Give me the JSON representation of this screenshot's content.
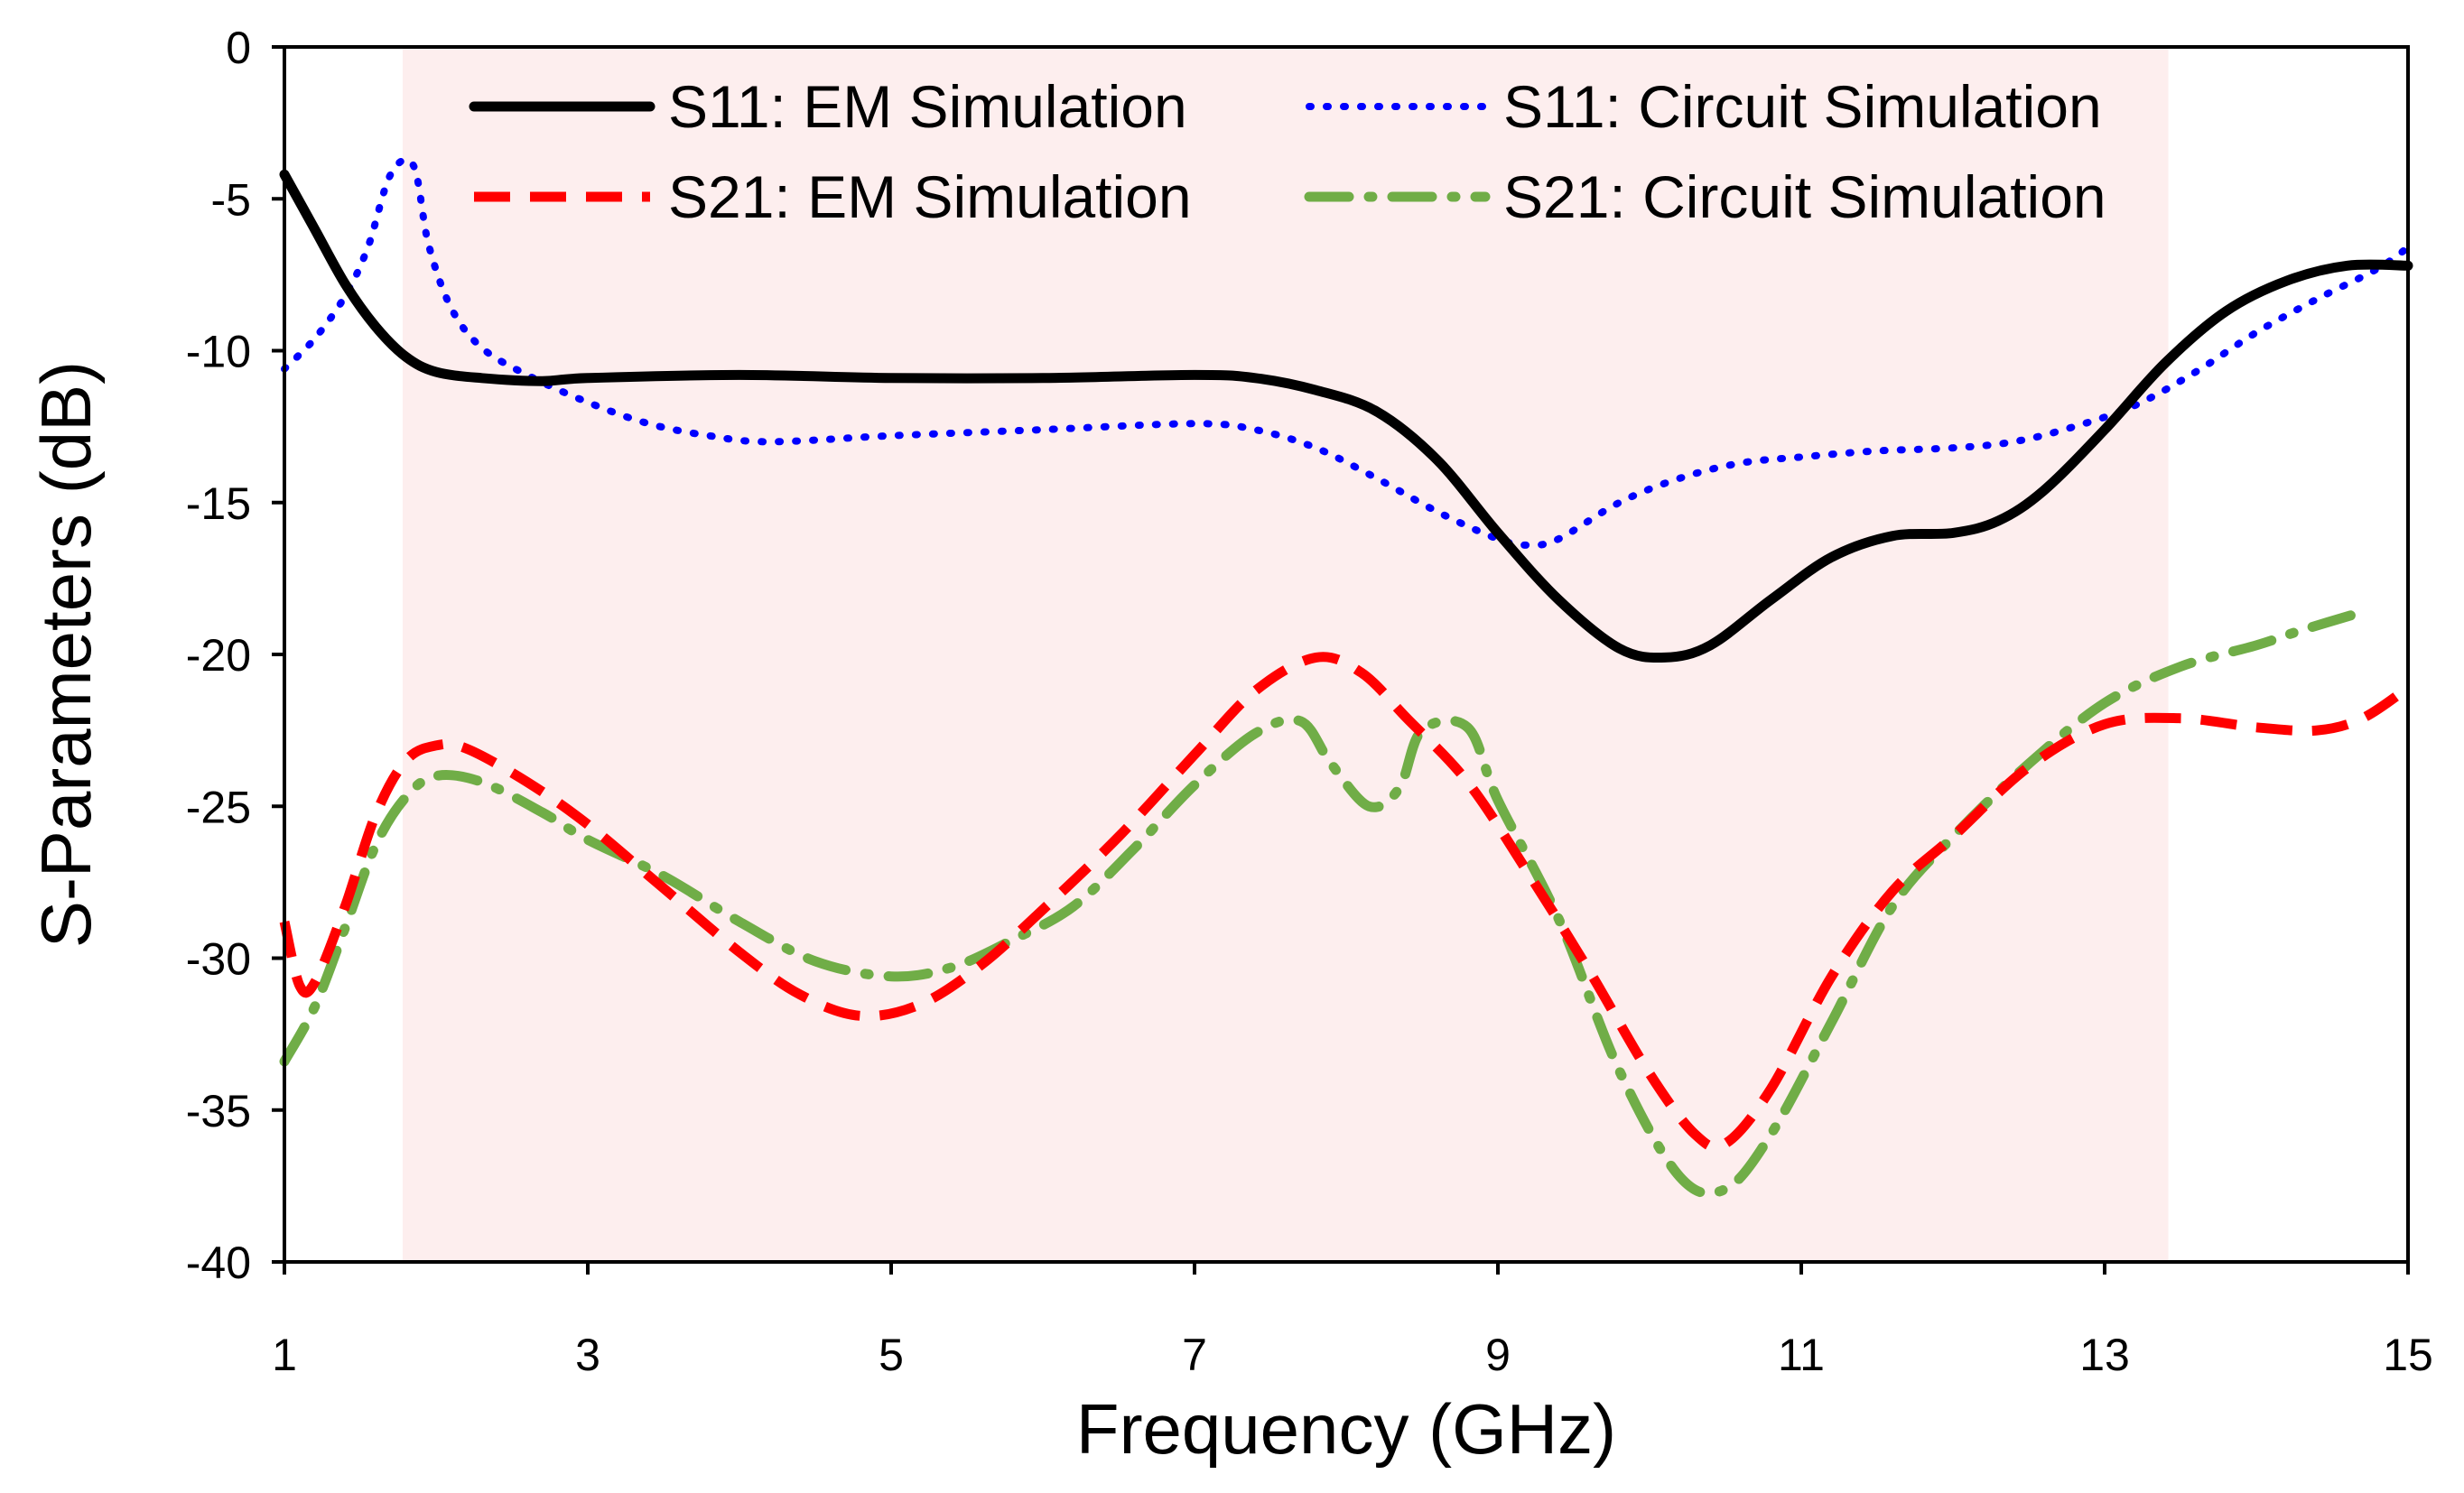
{
  "chart_data": {
    "type": "line",
    "title": "",
    "xlabel": "Frequency (GHz)",
    "ylabel": "S-Parameters (dB)",
    "xlim": [
      1,
      15
    ],
    "ylim": [
      -40,
      0
    ],
    "xticks": [
      1,
      3,
      5,
      7,
      9,
      11,
      13,
      15
    ],
    "yticks": [
      0,
      -5,
      -10,
      -15,
      -20,
      -25,
      -30,
      -35,
      -40
    ],
    "shaded_band": {
      "x_start": 1.78,
      "x_end": 13.42,
      "color": "#fdeeee"
    },
    "legend_position": "top",
    "series": [
      {
        "name": "S11: EM Simulation",
        "color": "#000000",
        "style": "solid",
        "points": [
          [
            1.0,
            -4.2
          ],
          [
            1.2,
            -6.0
          ],
          [
            1.4,
            -7.8
          ],
          [
            1.6,
            -9.2
          ],
          [
            1.8,
            -10.2
          ],
          [
            2.0,
            -10.7
          ],
          [
            2.3,
            -10.9
          ],
          [
            2.7,
            -11.0
          ],
          [
            3.0,
            -10.9
          ],
          [
            4.0,
            -10.8
          ],
          [
            5.0,
            -10.9
          ],
          [
            6.0,
            -10.9
          ],
          [
            7.0,
            -10.8
          ],
          [
            7.4,
            -10.9
          ],
          [
            7.8,
            -11.3
          ],
          [
            8.2,
            -12.0
          ],
          [
            8.6,
            -13.6
          ],
          [
            9.0,
            -16.0
          ],
          [
            9.4,
            -18.2
          ],
          [
            9.8,
            -19.8
          ],
          [
            10.1,
            -20.1
          ],
          [
            10.4,
            -19.7
          ],
          [
            10.8,
            -18.2
          ],
          [
            11.2,
            -16.8
          ],
          [
            11.6,
            -16.1
          ],
          [
            12.0,
            -16.0
          ],
          [
            12.3,
            -15.6
          ],
          [
            12.6,
            -14.6
          ],
          [
            13.0,
            -12.6
          ],
          [
            13.4,
            -10.4
          ],
          [
            13.8,
            -8.7
          ],
          [
            14.2,
            -7.7
          ],
          [
            14.6,
            -7.2
          ],
          [
            15.0,
            -7.2
          ]
        ]
      },
      {
        "name": "S11: Circuit Simulation",
        "color": "#0000ff",
        "style": "dotted",
        "points": [
          [
            1.0,
            -10.6
          ],
          [
            1.2,
            -9.6
          ],
          [
            1.4,
            -8.2
          ],
          [
            1.55,
            -6.6
          ],
          [
            1.7,
            -4.2
          ],
          [
            1.85,
            -3.9
          ],
          [
            1.95,
            -6.5
          ],
          [
            2.1,
            -8.6
          ],
          [
            2.3,
            -9.9
          ],
          [
            2.6,
            -10.8
          ],
          [
            3.0,
            -11.7
          ],
          [
            3.4,
            -12.4
          ],
          [
            3.8,
            -12.8
          ],
          [
            4.2,
            -13.0
          ],
          [
            5.0,
            -12.8
          ],
          [
            6.0,
            -12.6
          ],
          [
            7.0,
            -12.4
          ],
          [
            7.4,
            -12.6
          ],
          [
            7.8,
            -13.2
          ],
          [
            8.2,
            -14.2
          ],
          [
            8.6,
            -15.3
          ],
          [
            9.0,
            -16.2
          ],
          [
            9.2,
            -16.4
          ],
          [
            9.4,
            -16.2
          ],
          [
            9.8,
            -15.0
          ],
          [
            10.2,
            -14.2
          ],
          [
            10.6,
            -13.7
          ],
          [
            11.0,
            -13.5
          ],
          [
            11.5,
            -13.3
          ],
          [
            12.0,
            -13.2
          ],
          [
            12.4,
            -13.0
          ],
          [
            12.8,
            -12.5
          ],
          [
            13.2,
            -11.8
          ],
          [
            13.6,
            -10.7
          ],
          [
            14.0,
            -9.4
          ],
          [
            14.4,
            -8.3
          ],
          [
            14.8,
            -7.3
          ],
          [
            15.0,
            -6.6
          ]
        ]
      },
      {
        "name": "S21: EM Simulation",
        "color": "#ff0000",
        "style": "dashed",
        "points": [
          [
            1.0,
            -28.8
          ],
          [
            1.1,
            -30.9
          ],
          [
            1.2,
            -30.8
          ],
          [
            1.4,
            -28.3
          ],
          [
            1.6,
            -25.3
          ],
          [
            1.8,
            -23.5
          ],
          [
            2.0,
            -23.0
          ],
          [
            2.2,
            -23.1
          ],
          [
            2.6,
            -24.2
          ],
          [
            3.0,
            -25.6
          ],
          [
            3.5,
            -27.7
          ],
          [
            4.0,
            -29.8
          ],
          [
            4.4,
            -31.2
          ],
          [
            4.8,
            -31.9
          ],
          [
            5.2,
            -31.5
          ],
          [
            5.6,
            -30.2
          ],
          [
            6.0,
            -28.4
          ],
          [
            6.5,
            -26.0
          ],
          [
            7.0,
            -23.3
          ],
          [
            7.4,
            -21.2
          ],
          [
            7.8,
            -20.1
          ],
          [
            8.1,
            -20.6
          ],
          [
            8.4,
            -22.1
          ],
          [
            8.8,
            -24.2
          ],
          [
            9.2,
            -27.2
          ],
          [
            9.6,
            -30.4
          ],
          [
            10.0,
            -33.8
          ],
          [
            10.3,
            -35.8
          ],
          [
            10.5,
            -36.1
          ],
          [
            10.8,
            -34.3
          ],
          [
            11.2,
            -30.6
          ],
          [
            11.6,
            -27.8
          ],
          [
            12.0,
            -26.0
          ],
          [
            12.5,
            -23.7
          ],
          [
            13.0,
            -22.3
          ],
          [
            13.5,
            -22.1
          ],
          [
            14.0,
            -22.4
          ],
          [
            14.4,
            -22.5
          ],
          [
            14.7,
            -22.1
          ],
          [
            15.0,
            -21.1
          ]
        ]
      },
      {
        "name": "S21: Circuit Simulation",
        "color": "#70ad47",
        "style": "dashdot",
        "points": [
          [
            1.0,
            -33.4
          ],
          [
            1.2,
            -31.6
          ],
          [
            1.4,
            -29.0
          ],
          [
            1.6,
            -26.3
          ],
          [
            1.8,
            -24.7
          ],
          [
            2.0,
            -24.0
          ],
          [
            2.3,
            -24.2
          ],
          [
            2.7,
            -25.2
          ],
          [
            3.0,
            -26.1
          ],
          [
            3.5,
            -27.3
          ],
          [
            4.0,
            -28.8
          ],
          [
            4.5,
            -30.1
          ],
          [
            5.0,
            -30.6
          ],
          [
            5.4,
            -30.3
          ],
          [
            5.8,
            -29.4
          ],
          [
            6.2,
            -28.3
          ],
          [
            6.6,
            -26.4
          ],
          [
            7.0,
            -24.3
          ],
          [
            7.4,
            -22.6
          ],
          [
            7.7,
            -22.2
          ],
          [
            7.9,
            -23.6
          ],
          [
            8.15,
            -25.0
          ],
          [
            8.35,
            -24.4
          ],
          [
            8.5,
            -22.5
          ],
          [
            8.8,
            -22.4
          ],
          [
            9.0,
            -24.8
          ],
          [
            9.4,
            -28.7
          ],
          [
            9.8,
            -33.7
          ],
          [
            10.2,
            -37.2
          ],
          [
            10.5,
            -37.6
          ],
          [
            10.8,
            -35.8
          ],
          [
            11.2,
            -32.1
          ],
          [
            11.6,
            -28.3
          ],
          [
            12.0,
            -26.0
          ],
          [
            12.5,
            -23.6
          ],
          [
            13.0,
            -21.6
          ],
          [
            13.5,
            -20.4
          ],
          [
            14.0,
            -19.7
          ],
          [
            14.3,
            -19.2
          ],
          [
            14.7,
            -18.6
          ]
        ]
      }
    ]
  }
}
